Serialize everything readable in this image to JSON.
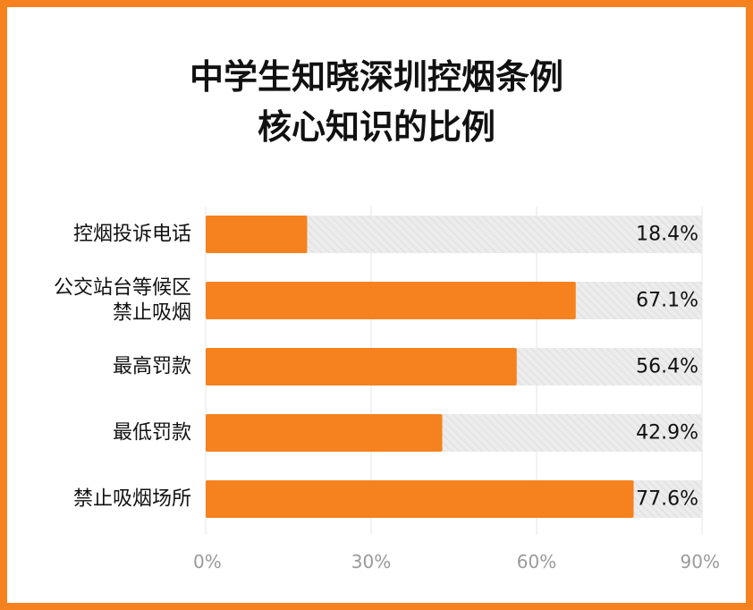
{
  "title_lines": [
    "中学生知晓深圳控烟条例",
    "核心知识的比例"
  ],
  "colors": {
    "frame": "#f5821f",
    "bar": "#f5821f",
    "track": "#ececec",
    "track_hatch": "#d9d9d9",
    "text": "#111111",
    "tick": "#9a9a9a",
    "gridline": "#e6e6e6"
  },
  "chart_data": {
    "type": "bar",
    "orientation": "horizontal",
    "categories": [
      [
        "控烟投诉电话"
      ],
      [
        "公交站台等候区",
        "禁止吸烟"
      ],
      [
        "最高罚款"
      ],
      [
        "最低罚款"
      ],
      [
        "禁止吸烟场所"
      ]
    ],
    "values": [
      18.4,
      67.1,
      56.4,
      42.9,
      77.6
    ],
    "value_labels": [
      "18.4%",
      "67.1%",
      "56.4%",
      "42.9%",
      "77.6%"
    ],
    "xlim": [
      0,
      90
    ],
    "xticks": [
      0,
      30,
      60,
      90
    ],
    "xtick_labels": [
      "0%",
      "30%",
      "60%",
      "90%"
    ],
    "grid": true
  }
}
